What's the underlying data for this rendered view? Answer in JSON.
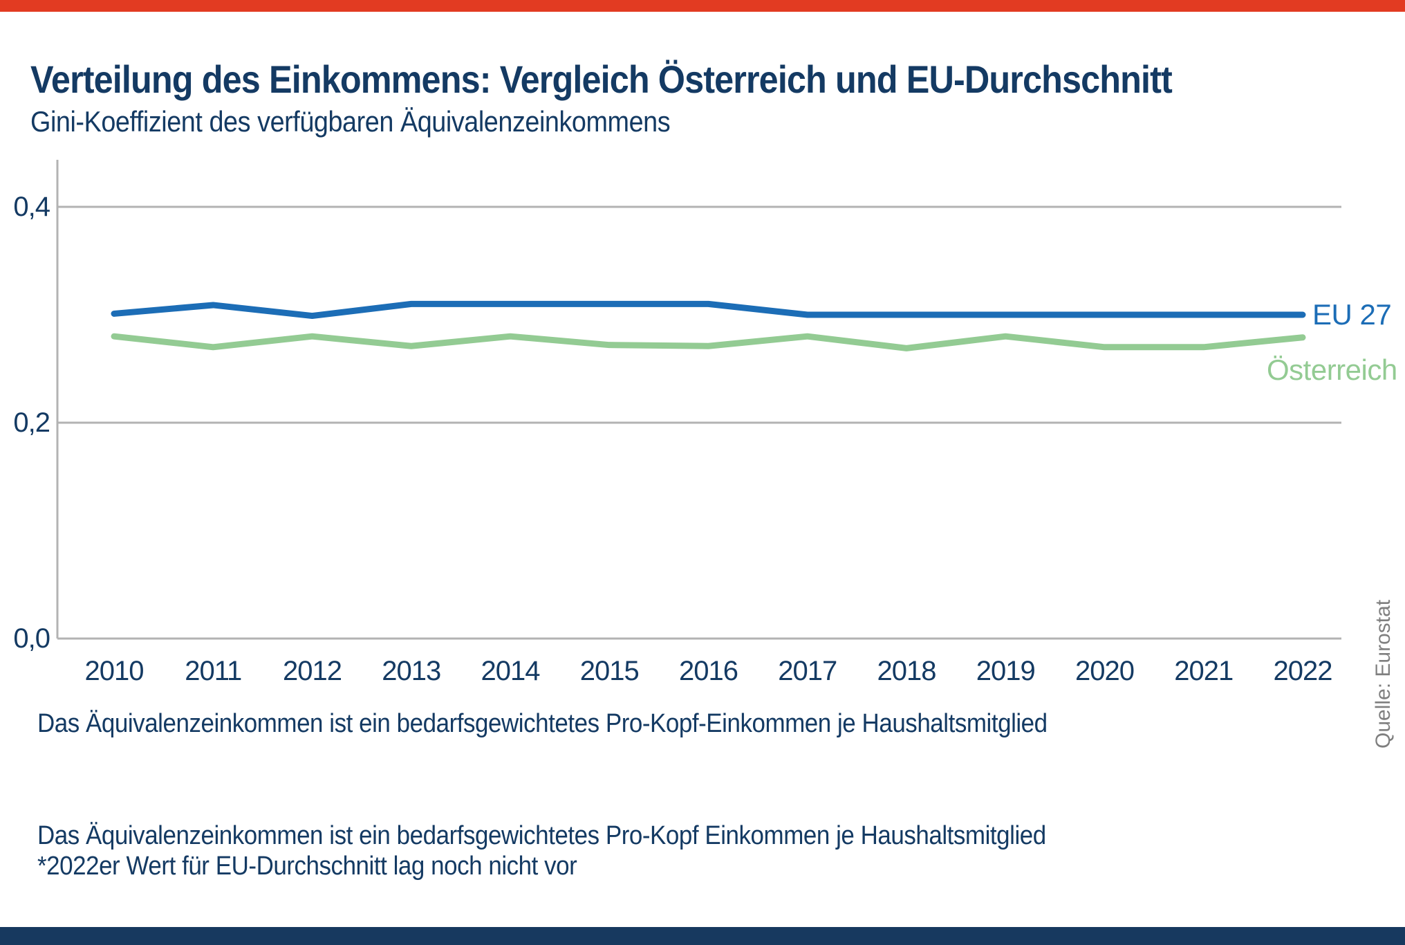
{
  "theme": {
    "background": "#ffffff",
    "top_bar_color": "#e23b22",
    "bottom_bar_color": "#17395f",
    "text_color": "#143a63",
    "grid_color": "#b3b3b3",
    "source_color": "#7f7f7f"
  },
  "header": {
    "title": "Verteilung des Einkommens: Vergleich Österreich und EU-Durchschnitt",
    "subtitle": "Gini-Koeffizient des verfügbaren Äquivalenzeinkommens"
  },
  "chart_data": {
    "type": "line",
    "title": "Verteilung des Einkommens: Vergleich Österreich und EU-Durchschnitt",
    "subtitle": "Gini-Koeffizient des verfügbaren Äquivalenzeinkommens",
    "categories": [
      "2010",
      "2011",
      "2012",
      "2013",
      "2014",
      "2015",
      "2016",
      "2017",
      "2018",
      "2019",
      "2020",
      "2021",
      "2022"
    ],
    "series": [
      {
        "name": "EU 27",
        "color": "#1c6db6",
        "values": [
          0.301,
          0.309,
          0.299,
          0.31,
          0.31,
          0.31,
          0.31,
          0.3,
          0.3,
          0.3,
          0.3,
          0.3,
          0.3
        ],
        "label_dx": 14,
        "label_dy": -25
      },
      {
        "name": "Österreich",
        "color": "#93cb93",
        "values": [
          0.28,
          0.27,
          0.28,
          0.271,
          0.28,
          0.272,
          0.271,
          0.28,
          0.269,
          0.28,
          0.27,
          0.27,
          0.279
        ],
        "label_dx": -52,
        "label_dy": 22
      }
    ],
    "xlabel": "",
    "ylabel": "",
    "ylim": [
      0,
      0.4
    ],
    "yticks": [
      {
        "value": 0.4,
        "label": "0,4"
      },
      {
        "value": 0.2,
        "label": "0,2"
      },
      {
        "value": 0.0,
        "label": "0,0"
      }
    ],
    "grid": "horizontal gridlines at y ticks, gray",
    "legend_position": "labels at right end of lines"
  },
  "footnote_chart": "Das Äquivalenzeinkommen ist ein bedarfsgewichtetes Pro-Kopf-Einkommen je Haushaltsmitglied",
  "footnote_block": {
    "line1": "Das Äquivalenzeinkommen ist ein bedarfsgewichtetes Pro-Kopf Einkommen je Haushaltsmitglied",
    "line2": "*2022er Wert für EU-Durchschnitt lag noch nicht vor"
  },
  "source": {
    "label": "Quelle: Eurostat"
  }
}
